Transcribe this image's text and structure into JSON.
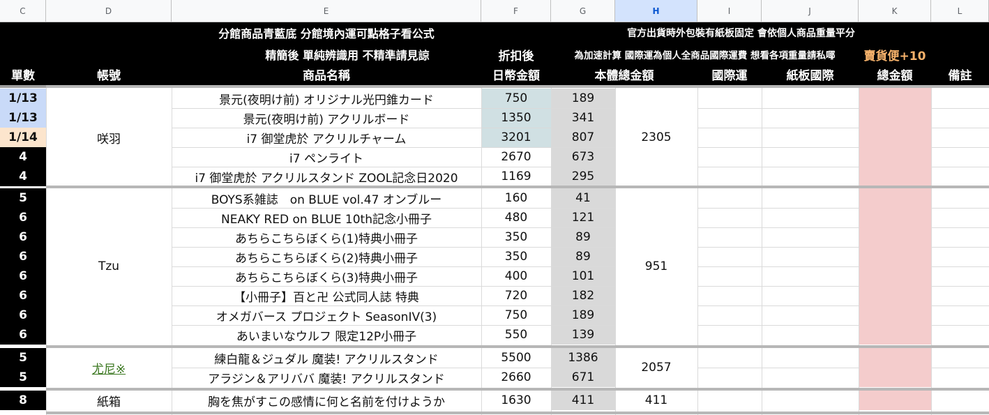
{
  "columns": [
    "C",
    "D",
    "E",
    "F",
    "G",
    "H",
    "I",
    "J",
    "K",
    "L"
  ],
  "header": {
    "e_line1": "分館商品青藍底 分館境內運可點格子看公式",
    "e_line2": "精簡後 單純辨識用 不精準請見諒",
    "e_line3": "商品名稱",
    "f_line2": "折扣後",
    "f_line3": "日幣金額",
    "gk_line1": "官方出貨時外包裝有紙板固定 會依個人商品重量平分",
    "gj_line2": "為加速計算 國際運為個人全商品國際運費 想看各項重量請私㖿",
    "k_line2": "賣貨便+10",
    "c_line3": "單數",
    "d_line3": "帳號",
    "g_line3": "本體總金額",
    "i_line3": "國際運",
    "j_line3": "紙板國際",
    "k_line3": "總金額",
    "l_line3": "備註"
  },
  "groups": [
    {
      "account": "咲羽",
      "total": "2305",
      "account_link": false
    },
    {
      "account": "Tzu",
      "total": "951",
      "account_link": false
    },
    {
      "account": "尤尼※",
      "total": "2057",
      "account_link": true
    },
    {
      "account": "紙箱",
      "total": "411",
      "account_link": false
    }
  ],
  "rows": [
    {
      "count": "1/13",
      "name": "景元(夜明け前) オリジナル光円錐カード",
      "jpy": "750",
      "body": "189"
    },
    {
      "count": "1/13",
      "name": "景元(夜明け前) アクリルボード",
      "jpy": "1350",
      "body": "341"
    },
    {
      "count": "1/14",
      "name": "i7 御堂虎於 アクリルチャーム",
      "jpy": "3201",
      "body": "807"
    },
    {
      "count": "4",
      "name": "i7 ペンライト",
      "jpy": "2670",
      "body": "673"
    },
    {
      "count": "4",
      "name": "i7 御堂虎於 アクリルスタンド ZOOL記念日2020",
      "jpy": "1169",
      "body": "295"
    },
    {
      "count": "5",
      "name": "BOYS系雑誌　on BLUE vol.47 オンブルー",
      "jpy": "160",
      "body": "41"
    },
    {
      "count": "6",
      "name": "NEAKY RED on BLUE 10th記念小冊子",
      "jpy": "480",
      "body": "121"
    },
    {
      "count": "6",
      "name": "あちらこちらぼくら(1)特典小冊子",
      "jpy": "350",
      "body": "89"
    },
    {
      "count": "6",
      "name": "あちらこちらぼくら(2)特典小冊子",
      "jpy": "350",
      "body": "89"
    },
    {
      "count": "6",
      "name": "あちらこちらぼくら(3)特典小冊子",
      "jpy": "400",
      "body": "101"
    },
    {
      "count": "6",
      "name": "【小冊子】百と卍 公式同人誌 特典",
      "jpy": "720",
      "body": "182"
    },
    {
      "count": "6",
      "name": "オメガバース プロジェクト SeasonIV(3)",
      "jpy": "750",
      "body": "189"
    },
    {
      "count": "6",
      "name": "あいまいなウルフ 限定12P小冊子",
      "jpy": "550",
      "body": "139"
    },
    {
      "count": "5",
      "name": "練白龍＆ジュダル 魔装! アクリルスタンド",
      "jpy": "5500",
      "body": "1386"
    },
    {
      "count": "5",
      "name": "アラジン＆アリババ 魔装! アクリルスタンド",
      "jpy": "2660",
      "body": "671"
    },
    {
      "count": "8",
      "name": "胸を焦がすこの感情に何と名前を付けようか",
      "jpy": "1630",
      "body": "411"
    }
  ],
  "colors": {
    "header_bg": "#000000",
    "header_accent": "#f6b26b",
    "count_blue": "#c9daf8",
    "count_orange": "#fce5cd",
    "jpy_teal": "#d0e0e3",
    "body_gray": "#d9d9d9",
    "total_pink": "#f4cccc",
    "link_green": "#38761d"
  }
}
